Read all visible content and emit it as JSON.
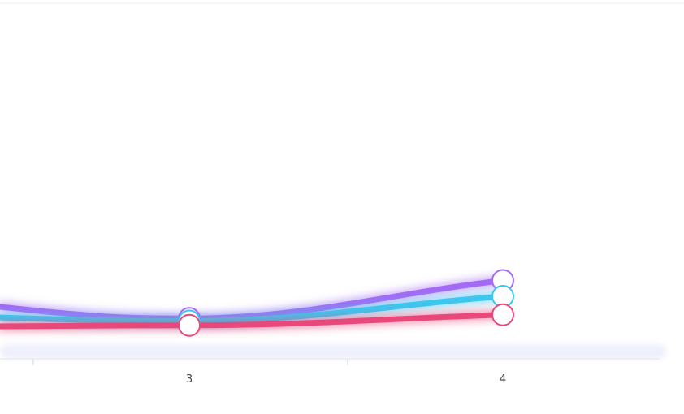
{
  "chart_data": {
    "type": "line",
    "x": [
      "3",
      "4"
    ],
    "series": [
      {
        "color": "#a46bf5",
        "values": [
          1.8,
          9.0
        ]
      },
      {
        "color": "#3ec6f0",
        "values": [
          1.3,
          6.0
        ]
      },
      {
        "color": "#e8487a",
        "values": [
          0.5,
          2.5
        ]
      }
    ],
    "grid": false,
    "legend": "none"
  }
}
